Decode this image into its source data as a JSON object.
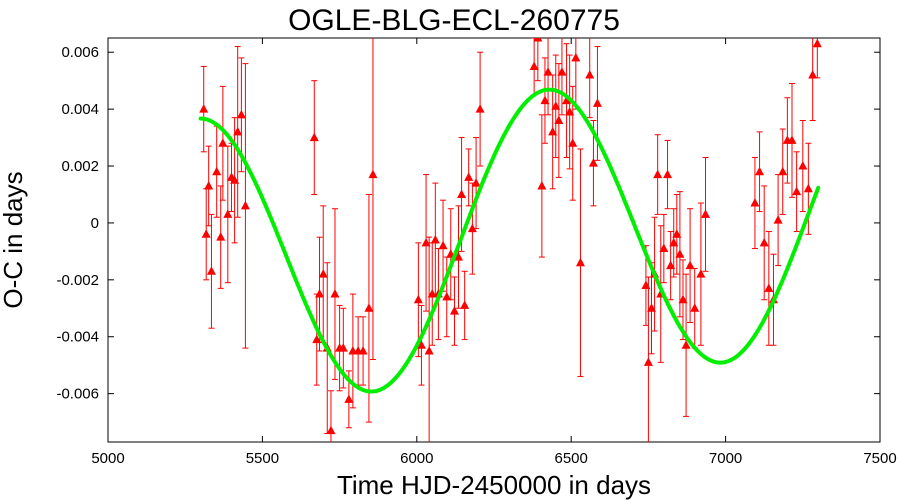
{
  "chart_data": {
    "type": "scatter",
    "title": "OGLE-BLG-ECL-260775",
    "xlabel": "Time HJD-2450000 in days",
    "ylabel": "O-C in days",
    "xlim": [
      5000,
      7500
    ],
    "ylim": [
      -0.0077,
      0.0065
    ],
    "xticks": [
      5000,
      5500,
      6000,
      6500,
      7000,
      7500
    ],
    "yticks": [
      -0.006,
      -0.004,
      -0.002,
      0,
      0.002,
      0.004,
      0.006
    ],
    "xtick_labels": [
      "5000",
      "5500",
      "6000",
      "6500",
      "7000",
      "7500"
    ],
    "ytick_labels": [
      "-0.006",
      "-0.004",
      "-0.002",
      "0",
      "0.002",
      "0.004",
      "0.006"
    ],
    "grid": false,
    "series": [
      {
        "kind": "points_with_errorbars",
        "marker": "triangle",
        "color": "#ff0000",
        "points": [
          {
            "x": 5310,
            "y": 0.004,
            "err": 0.0015
          },
          {
            "x": 5318,
            "y": -0.0004,
            "err": 0.0016
          },
          {
            "x": 5326,
            "y": 0.0013,
            "err": 0.0014
          },
          {
            "x": 5335,
            "y": -0.0017,
            "err": 0.002
          },
          {
            "x": 5352,
            "y": 0.0018,
            "err": 0.0016
          },
          {
            "x": 5365,
            "y": -0.0005,
            "err": 0.0018
          },
          {
            "x": 5372,
            "y": 0.0028,
            "err": 0.002
          },
          {
            "x": 5388,
            "y": 0.0003,
            "err": 0.0024
          },
          {
            "x": 5400,
            "y": 0.0016,
            "err": 0.0012
          },
          {
            "x": 5410,
            "y": 0.0015,
            "err": 0.0022
          },
          {
            "x": 5420,
            "y": 0.0032,
            "err": 0.003
          },
          {
            "x": 5432,
            "y": 0.0038,
            "err": 0.002
          },
          {
            "x": 5445,
            "y": 0.0006,
            "err": 0.005
          },
          {
            "x": 5668,
            "y": 0.003,
            "err": 0.002
          },
          {
            "x": 5676,
            "y": -0.0041,
            "err": 0.0016
          },
          {
            "x": 5685,
            "y": -0.0025,
            "err": 0.002
          },
          {
            "x": 5697,
            "y": -0.0018,
            "err": 0.0024
          },
          {
            "x": 5710,
            "y": -0.0044,
            "err": 0.003
          },
          {
            "x": 5722,
            "y": -0.0073,
            "err": 0.0014
          },
          {
            "x": 5735,
            "y": -0.0025,
            "err": 0.003
          },
          {
            "x": 5750,
            "y": -0.0044,
            "err": 0.0015
          },
          {
            "x": 5762,
            "y": -0.0044,
            "err": 0.0014
          },
          {
            "x": 5780,
            "y": -0.0062,
            "err": 0.001
          },
          {
            "x": 5793,
            "y": -0.0045,
            "err": 0.002
          },
          {
            "x": 5810,
            "y": -0.0045,
            "err": 0.0012
          },
          {
            "x": 5826,
            "y": -0.0045,
            "err": 0.0012
          },
          {
            "x": 5845,
            "y": -0.003,
            "err": 0.004
          },
          {
            "x": 5858,
            "y": 0.0017,
            "err": 0.0065
          },
          {
            "x": 6005,
            "y": -0.0027,
            "err": 0.002
          },
          {
            "x": 6015,
            "y": -0.0043,
            "err": 0.0014
          },
          {
            "x": 6030,
            "y": -0.0007,
            "err": 0.0024
          },
          {
            "x": 6040,
            "y": -0.0045,
            "err": 0.004
          },
          {
            "x": 6050,
            "y": -0.0025,
            "err": 0.0018
          },
          {
            "x": 6060,
            "y": -0.0006,
            "err": 0.002
          },
          {
            "x": 6070,
            "y": -0.0025,
            "err": 0.0016
          },
          {
            "x": 6085,
            "y": -0.0008,
            "err": 0.0016
          },
          {
            "x": 6097,
            "y": -0.0026,
            "err": 0.0014
          },
          {
            "x": 6110,
            "y": -0.0011,
            "err": 0.0016
          },
          {
            "x": 6122,
            "y": -0.0031,
            "err": 0.0012
          },
          {
            "x": 6135,
            "y": -0.0012,
            "err": 0.0018
          },
          {
            "x": 6145,
            "y": 0.001,
            "err": 0.002
          },
          {
            "x": 6155,
            "y": -0.0029,
            "err": 0.0012
          },
          {
            "x": 6168,
            "y": 0.0016,
            "err": 0.001
          },
          {
            "x": 6180,
            "y": -0.0002,
            "err": 0.0016
          },
          {
            "x": 6192,
            "y": 0.0014,
            "err": 0.0016
          },
          {
            "x": 6205,
            "y": 0.004,
            "err": 0.002
          },
          {
            "x": 6380,
            "y": 0.0055,
            "err": 0.001
          },
          {
            "x": 6392,
            "y": 0.0065,
            "err": 0.0015
          },
          {
            "x": 6405,
            "y": 0.0013,
            "err": 0.0025
          },
          {
            "x": 6415,
            "y": 0.0043,
            "err": 0.0015
          },
          {
            "x": 6425,
            "y": 0.0053,
            "err": 0.0015
          },
          {
            "x": 6440,
            "y": 0.0032,
            "err": 0.002
          },
          {
            "x": 6450,
            "y": 0.0041,
            "err": 0.0018
          },
          {
            "x": 6460,
            "y": 0.0036,
            "err": 0.002
          },
          {
            "x": 6470,
            "y": 0.0053,
            "err": 0.0015
          },
          {
            "x": 6485,
            "y": 0.0043,
            "err": 0.002
          },
          {
            "x": 6495,
            "y": 0.0039,
            "err": 0.002
          },
          {
            "x": 6505,
            "y": 0.0028,
            "err": 0.002
          },
          {
            "x": 6515,
            "y": 0.0058,
            "err": 0.0018
          },
          {
            "x": 6530,
            "y": -0.0014,
            "err": 0.004
          },
          {
            "x": 6560,
            "y": 0.0052,
            "err": 0.0015
          },
          {
            "x": 6572,
            "y": 0.0021,
            "err": 0.0015
          },
          {
            "x": 6585,
            "y": 0.0042,
            "err": 0.002
          },
          {
            "x": 6742,
            "y": -0.0022,
            "err": 0.0014
          },
          {
            "x": 6750,
            "y": -0.0049,
            "err": 0.003
          },
          {
            "x": 6760,
            "y": -0.003,
            "err": 0.0016
          },
          {
            "x": 6770,
            "y": -0.0018,
            "err": 0.002
          },
          {
            "x": 6780,
            "y": 0.0017,
            "err": 0.0014
          },
          {
            "x": 6790,
            "y": -0.0025,
            "err": 0.0024
          },
          {
            "x": 6800,
            "y": -0.0009,
            "err": 0.0012
          },
          {
            "x": 6812,
            "y": 0.0017,
            "err": 0.0012
          },
          {
            "x": 6822,
            "y": -0.0015,
            "err": 0.0012
          },
          {
            "x": 6832,
            "y": -0.0007,
            "err": 0.0012
          },
          {
            "x": 6842,
            "y": -0.0004,
            "err": 0.0014
          },
          {
            "x": 6852,
            "y": -0.0011,
            "err": 0.0022
          },
          {
            "x": 6862,
            "y": -0.0027,
            "err": 0.0014
          },
          {
            "x": 6872,
            "y": -0.0043,
            "err": 0.0025
          },
          {
            "x": 6885,
            "y": -0.0015,
            "err": 0.002
          },
          {
            "x": 6900,
            "y": -0.003,
            "err": 0.0014
          },
          {
            "x": 6920,
            "y": -0.0018,
            "err": 0.0025
          },
          {
            "x": 6935,
            "y": 0.0003,
            "err": 0.002
          },
          {
            "x": 7095,
            "y": 0.0007,
            "err": 0.0016
          },
          {
            "x": 7110,
            "y": 0.0018,
            "err": 0.0014
          },
          {
            "x": 7125,
            "y": -0.0007,
            "err": 0.002
          },
          {
            "x": 7140,
            "y": -0.0023,
            "err": 0.002
          },
          {
            "x": 7155,
            "y": -0.0027,
            "err": 0.0016
          },
          {
            "x": 7170,
            "y": 0.0001,
            "err": 0.0016
          },
          {
            "x": 7185,
            "y": 0.0018,
            "err": 0.0015
          },
          {
            "x": 7200,
            "y": 0.0029,
            "err": 0.0015
          },
          {
            "x": 7215,
            "y": 0.0029,
            "err": 0.002
          },
          {
            "x": 7230,
            "y": 0.0011,
            "err": 0.0014
          },
          {
            "x": 7250,
            "y": 0.002,
            "err": 0.0016
          },
          {
            "x": 7268,
            "y": 0.0012,
            "err": 0.0016
          },
          {
            "x": 7282,
            "y": 0.0052,
            "err": 0.0016
          },
          {
            "x": 7297,
            "y": 0.0063,
            "err": 0.0012
          }
        ]
      },
      {
        "kind": "fit_curve",
        "color": "#00ee00",
        "x_start": 5300,
        "x_end": 7300,
        "model": "linear_plus_sinusoid",
        "offset": -0.00062,
        "slope_per_day": 9e-07,
        "amplitude": 0.00505,
        "period_days": 1130,
        "reference_x": 6141
      }
    ]
  }
}
